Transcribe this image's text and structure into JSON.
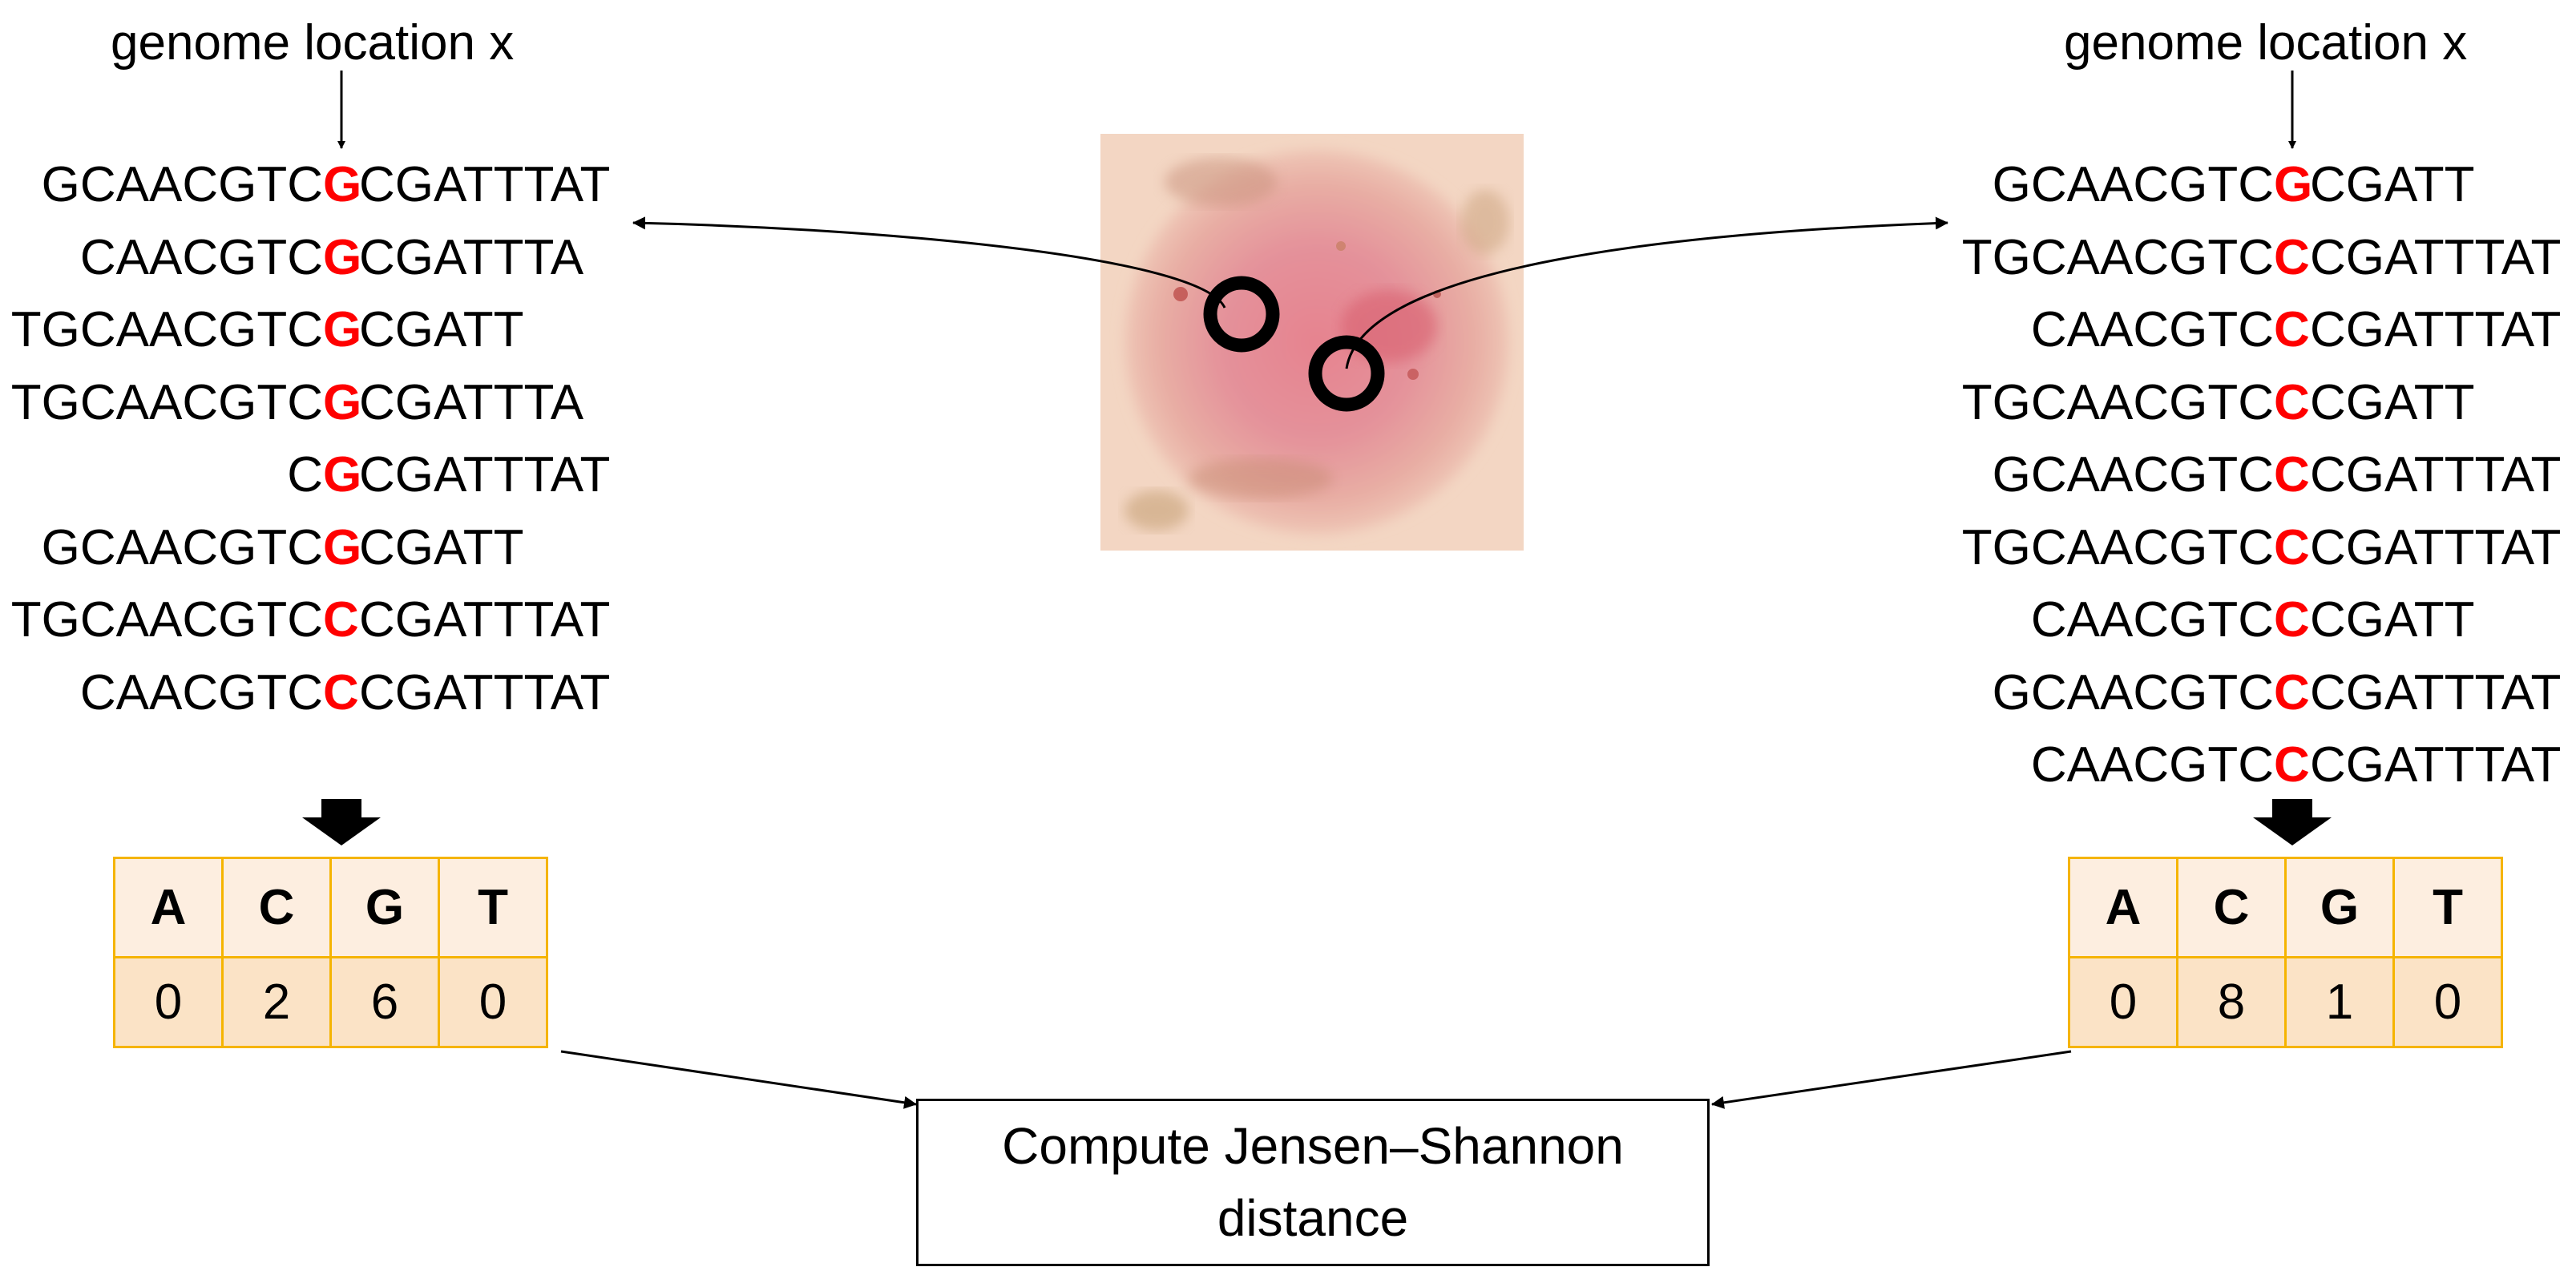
{
  "left": {
    "location_label": "genome location x",
    "reads": [
      {
        "pre": "GCAACGTC",
        "snp": "G",
        "post": "CGATTTAT"
      },
      {
        "pre": "CAACGTC",
        "snp": "G",
        "post": "CGATTTA"
      },
      {
        "pre": "TGCAACGTC",
        "snp": "G",
        "post": "CGATT"
      },
      {
        "pre": "TGCAACGTC",
        "snp": "G",
        "post": "CGATTTA"
      },
      {
        "pre": "C",
        "snp": "G",
        "post": "CGATTTAT"
      },
      {
        "pre": "GCAACGTC",
        "snp": "G",
        "post": "CGATT"
      },
      {
        "pre": "TGCAACGTC",
        "snp": "C",
        "post": "CGATTTAT"
      },
      {
        "pre": "CAACGTC",
        "snp": "C",
        "post": "CGATTTAT"
      }
    ],
    "table": {
      "headers": [
        "A",
        "C",
        "G",
        "T"
      ],
      "values": [
        "0",
        "2",
        "6",
        "0"
      ]
    }
  },
  "right": {
    "location_label": "genome location x",
    "reads": [
      {
        "pre": "GCAACGTC",
        "snp": "G",
        "post": "CGATT"
      },
      {
        "pre": "TGCAACGTC",
        "snp": "C",
        "post": "CGATTTAT"
      },
      {
        "pre": "CAACGTC",
        "snp": "C",
        "post": "CGATTTAT"
      },
      {
        "pre": "TGCAACGTC",
        "snp": "C",
        "post": "CGATT"
      },
      {
        "pre": "GCAACGTC",
        "snp": "C",
        "post": "CGATTTAT"
      },
      {
        "pre": "TGCAACGTC",
        "snp": "C",
        "post": "CGATTTAT"
      },
      {
        "pre": "CAACGTC",
        "snp": "C",
        "post": "CGATT"
      },
      {
        "pre": "GCAACGTC",
        "snp": "C",
        "post": "CGATTTAT"
      },
      {
        "pre": "CAACGTC",
        "snp": "C",
        "post": "CGATTTAT"
      }
    ],
    "table": {
      "headers": [
        "A",
        "C",
        "G",
        "T"
      ],
      "values": [
        "0",
        "8",
        "1",
        "0"
      ]
    }
  },
  "result": {
    "line1": "Compute Jensen–Shannon",
    "line2": "distance"
  },
  "colors": {
    "snp": "#ff0000",
    "table_border": "#f5b400",
    "table_header_bg": "#fdeee0",
    "table_value_bg": "#fbe3c6"
  }
}
